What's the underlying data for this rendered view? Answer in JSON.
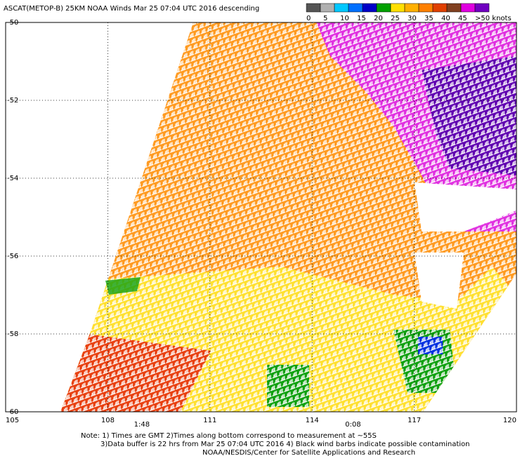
{
  "header": {
    "title": "ASCAT(METOP-B) 25KM NOAA Winds  Mar 25 07:04 UTC 2016 descending"
  },
  "legend": {
    "colors": [
      "#555555",
      "#b0b0b0",
      "#00c8ff",
      "#0070ff",
      "#0000c8",
      "#00a000",
      "#ffe000",
      "#ffb000",
      "#ff8000",
      "#e04000",
      "#804020",
      "#e000e0",
      "#7000c0"
    ],
    "labels": [
      "0",
      "5",
      "10",
      "15",
      "20",
      "25",
      "30",
      "35",
      "40",
      "45",
      ">50 knots"
    ]
  },
  "map": {
    "lat_labels": [
      "-50",
      "-52",
      "-54",
      "-56",
      "-58",
      "-60"
    ],
    "lon_labels": [
      "105",
      "108",
      "111",
      "114",
      "117",
      "120"
    ],
    "time_labels": [
      {
        "text": "1:48",
        "lon": 109
      },
      {
        "text": "0:08",
        "lon": 115.2
      }
    ]
  },
  "notes": [
    "Note: 1) Times are GMT 2)Times along bottom correspond to measurement at ~55S",
    "3)Data buffer is 22 hrs from Mar 25 07:04 UTC 2016 4) Black wind barbs indicate possible contamination",
    "NOAA/NESDIS/Center for Satellite Applications and Research"
  ]
}
